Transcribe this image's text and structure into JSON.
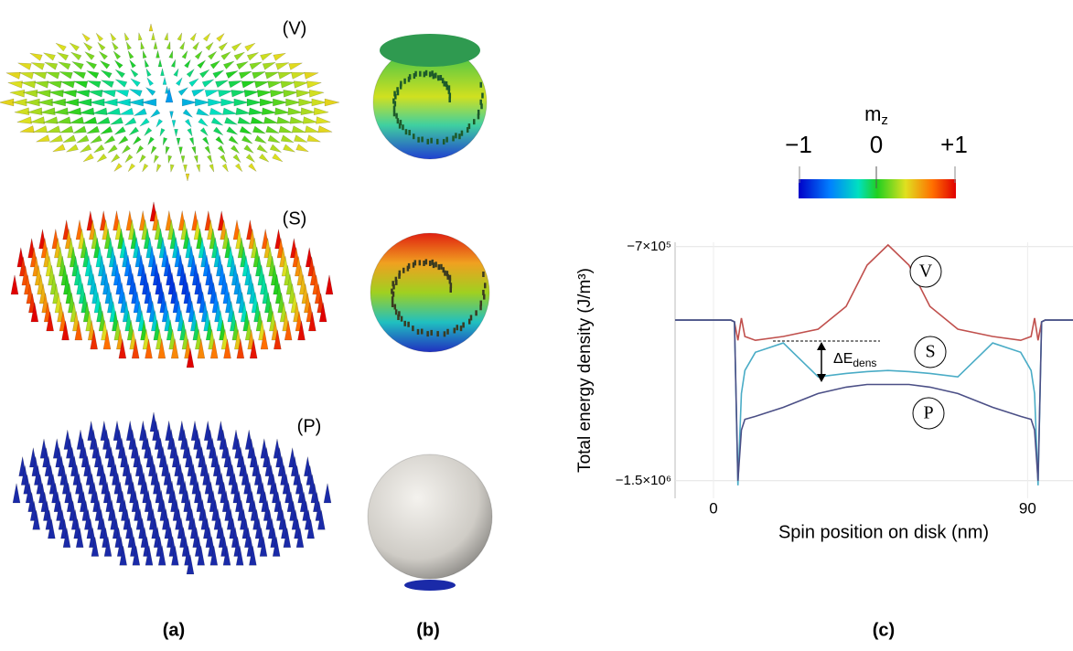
{
  "panels": {
    "a": {
      "label": "(a)",
      "disks": [
        "(V)",
        "(S)",
        "(P)"
      ]
    },
    "b": {
      "label": "(b)"
    },
    "c": {
      "label": "(c)"
    }
  },
  "colorbar": {
    "title": {
      "text": "m",
      "subscript": "z"
    },
    "tick_labels": [
      "−1",
      "0",
      "+1"
    ]
  },
  "chart_data": {
    "type": "line",
    "x_label": "Spin position on disk (nm)",
    "y_label": "Total energy density (J/m³)",
    "annotation": {
      "text": "ΔE",
      "subscript": "dens"
    },
    "x": [
      -11,
      5,
      6,
      7,
      8,
      9,
      12,
      20,
      30,
      38,
      44,
      50,
      56,
      62,
      70,
      80,
      88,
      91,
      92,
      93,
      94,
      95,
      103
    ],
    "series": [
      {
        "name": "V",
        "color": "#c0504d",
        "values": [
          -951000,
          -951000,
          -957000,
          -1020000,
          -944000,
          -1007000,
          -1020000,
          -1007000,
          -982000,
          -904000,
          -763000,
          -694000,
          -763000,
          -904000,
          -982000,
          -1007000,
          -1020000,
          -1007000,
          -944000,
          -1020000,
          -957000,
          -951000,
          -951000
        ]
      },
      {
        "name": "S",
        "color": "#4aacc6",
        "values": [
          -951000,
          -951000,
          -957000,
          -1516000,
          -1202000,
          -1123000,
          -1061000,
          -1029000,
          -1145000,
          -1133000,
          -1127000,
          -1123000,
          -1127000,
          -1133000,
          -1145000,
          -1029000,
          -1061000,
          -1123000,
          -1202000,
          -1516000,
          -957000,
          -951000,
          -951000
        ]
      },
      {
        "name": "P",
        "color": "#4b4f86",
        "values": [
          -951000,
          -951000,
          -957000,
          -1500000,
          -1327000,
          -1290000,
          -1280000,
          -1249000,
          -1202000,
          -1180000,
          -1171000,
          -1171000,
          -1171000,
          -1180000,
          -1202000,
          -1249000,
          -1280000,
          -1290000,
          -1327000,
          -1500000,
          -957000,
          -951000,
          -951000
        ]
      }
    ],
    "xlim": [
      -11,
      103
    ],
    "xticks": [
      0,
      90
    ],
    "ylim": [
      -1560000,
      -685000
    ],
    "yticks": [
      {
        "value": -1500000,
        "label": "−1.5×10⁶"
      },
      {
        "value": -700000,
        "label": "−7×10⁵"
      }
    ],
    "grid": true
  }
}
